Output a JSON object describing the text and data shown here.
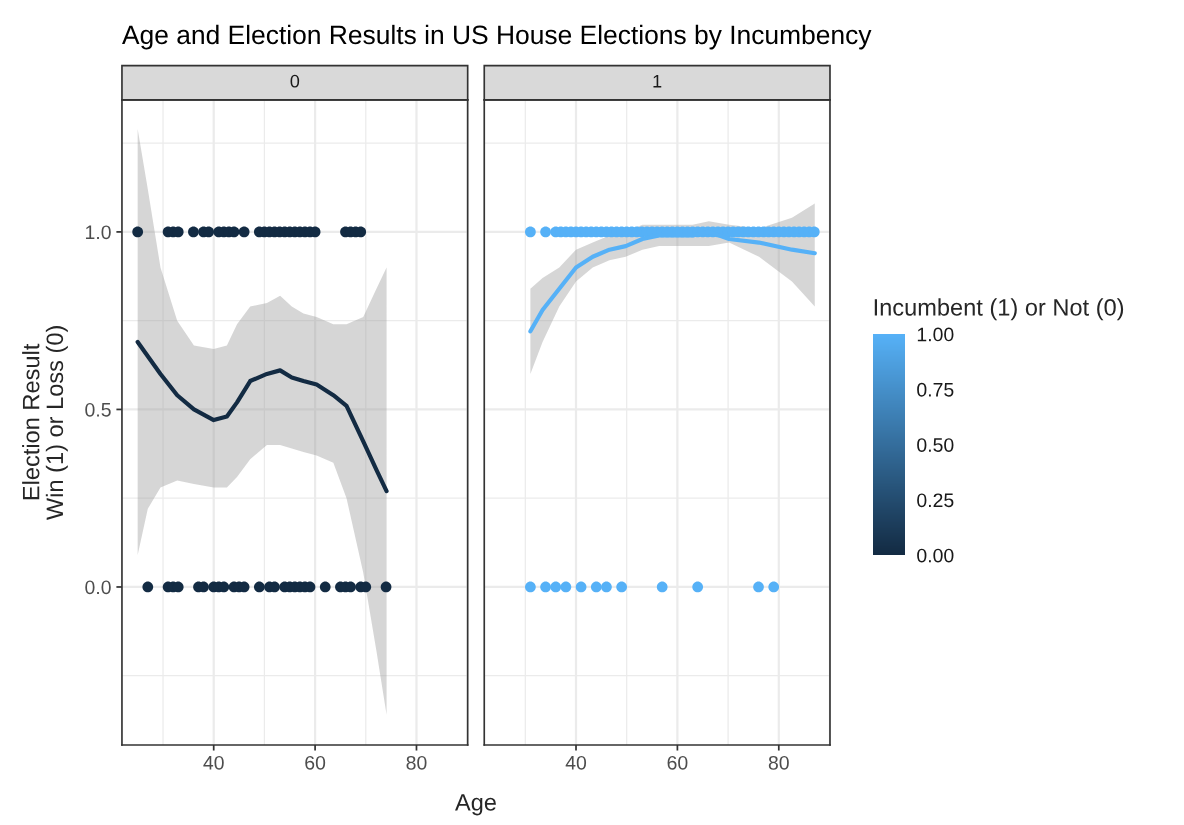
{
  "chart_data": [
    {
      "type": "scatter",
      "title": "Age and Election Results in US House Elections by Incumbency",
      "subtitle": "0",
      "xlabel": "Age",
      "ylabel": "Election Result\nWin (1) or Loss (0)",
      "clabel": "Incumbent (1) or Not (0)",
      "clim": [
        0,
        1
      ],
      "cticks": [
        {
          "value": 0,
          "label": "0.00"
        },
        {
          "value": 0.25,
          "label": "0.25"
        },
        {
          "value": 0.5,
          "label": "0.50"
        },
        {
          "value": 0.75,
          "label": "0.75"
        },
        {
          "value": 1,
          "label": "1.00"
        }
      ],
      "colors": [
        "#132b43",
        "#56b1f7"
      ],
      "xlim": [
        21.9,
        90.1
      ],
      "xticks": [
        40,
        60,
        80
      ],
      "ylim": [
        -0.445,
        1.372
      ],
      "yticks": [
        {
          "value": 0,
          "label": "0.0"
        },
        {
          "value": 0.5,
          "label": "0.5"
        },
        {
          "value": 1,
          "label": "1.0"
        }
      ],
      "grid": true,
      "series": [
        {
          "marker": "circle",
          "color": "#132b43",
          "x": [
            25,
            31,
            32,
            33,
            36,
            38,
            39,
            41,
            42,
            43,
            44,
            46,
            49,
            50,
            51,
            52,
            53,
            54,
            55,
            56,
            57,
            58,
            59,
            60,
            66,
            67,
            68,
            69,
            27,
            31,
            32,
            33,
            37,
            38,
            40,
            41,
            42,
            44,
            45,
            46,
            49,
            51,
            52,
            54,
            55,
            56,
            57,
            58,
            59,
            62,
            65,
            66,
            67,
            69,
            70,
            74
          ],
          "values": [
            1,
            1,
            1,
            1,
            1,
            1,
            1,
            1,
            1,
            1,
            1,
            1,
            1,
            1,
            1,
            1,
            1,
            1,
            1,
            1,
            1,
            1,
            1,
            1,
            1,
            1,
            1,
            1,
            0,
            0,
            0,
            0,
            0,
            0,
            0,
            0,
            0,
            0,
            0,
            0,
            0,
            0,
            0,
            0,
            0,
            0,
            0,
            0,
            0,
            0,
            0,
            0,
            0,
            0,
            0,
            0
          ]
        },
        {
          "type": "line",
          "color": "#132b43",
          "x": [
            25,
            27,
            29.5,
            32.8,
            36.1,
            40,
            42.6,
            44.6,
            47.2,
            50.5,
            53.1,
            55.4,
            57.7,
            60.3,
            63.6,
            66.2,
            69.5,
            72.1,
            74.1
          ],
          "values": [
            0.69,
            0.65,
            0.6,
            0.54,
            0.5,
            0.47,
            0.48,
            0.52,
            0.58,
            0.6,
            0.61,
            0.59,
            0.58,
            0.57,
            0.54,
            0.51,
            0.41,
            0.33,
            0.27
          ],
          "upper": [
            1.29,
            1.12,
            0.9,
            0.75,
            0.68,
            0.67,
            0.68,
            0.74,
            0.79,
            0.8,
            0.82,
            0.79,
            0.77,
            0.76,
            0.74,
            0.74,
            0.76,
            0.84,
            0.9
          ],
          "lower": [
            0.09,
            0.22,
            0.28,
            0.3,
            0.29,
            0.28,
            0.28,
            0.31,
            0.36,
            0.4,
            0.4,
            0.39,
            0.38,
            0.37,
            0.35,
            0.25,
            0.04,
            -0.18,
            -0.36
          ]
        }
      ]
    },
    {
      "type": "scatter",
      "subtitle": "1",
      "xlim": [
        21.9,
        90.1
      ],
      "xticks": [
        40,
        60,
        80
      ],
      "ylim": [
        -0.445,
        1.372
      ],
      "yticks": [
        {
          "value": 0,
          "label": null
        },
        {
          "value": 0.5,
          "label": null
        },
        {
          "value": 1,
          "label": null
        }
      ],
      "tick_labels": "x",
      "grid": true,
      "series": [
        {
          "marker": "circle",
          "color": "#56b1f7",
          "x": [
            31,
            34,
            36,
            37,
            38,
            39,
            40,
            41,
            42,
            43,
            44,
            45,
            46,
            47,
            48,
            49,
            50,
            51,
            52,
            53,
            54,
            55,
            56,
            57,
            58,
            59,
            60,
            61,
            62,
            63,
            64,
            65,
            66,
            67,
            68,
            69,
            70,
            71,
            72,
            73,
            74,
            75,
            76,
            77,
            78,
            79,
            80,
            81,
            82,
            83,
            84,
            85,
            86,
            87,
            31,
            34,
            36,
            38,
            41,
            44,
            46,
            49,
            57,
            64,
            76,
            79
          ],
          "values": [
            1,
            1,
            1,
            1,
            1,
            1,
            1,
            1,
            1,
            1,
            1,
            1,
            1,
            1,
            1,
            1,
            1,
            1,
            1,
            1,
            1,
            1,
            1,
            1,
            1,
            1,
            1,
            1,
            1,
            1,
            1,
            1,
            1,
            1,
            1,
            1,
            1,
            1,
            1,
            1,
            1,
            1,
            1,
            1,
            1,
            1,
            1,
            1,
            1,
            1,
            1,
            1,
            1,
            1,
            0,
            0,
            0,
            0,
            0,
            0,
            0,
            0,
            0,
            0,
            0,
            0
          ]
        },
        {
          "type": "line",
          "color": "#56b1f7",
          "x": [
            31,
            33.4,
            36.7,
            40,
            43.3,
            46.6,
            49.8,
            53.1,
            56.4,
            59.7,
            63,
            66.2,
            70.2,
            76.1,
            82.6,
            87.1
          ],
          "values": [
            0.72,
            0.78,
            0.84,
            0.9,
            0.93,
            0.95,
            0.96,
            0.98,
            0.99,
            0.99,
            0.99,
            1.0,
            0.98,
            0.97,
            0.95,
            0.94
          ],
          "upper": [
            0.84,
            0.87,
            0.9,
            0.95,
            0.97,
            0.99,
            1.0,
            1.02,
            1.02,
            1.02,
            1.02,
            1.03,
            1.02,
            1.01,
            1.04,
            1.08
          ],
          "lower": [
            0.6,
            0.69,
            0.79,
            0.86,
            0.9,
            0.92,
            0.93,
            0.95,
            0.96,
            0.96,
            0.96,
            0.96,
            0.97,
            0.93,
            0.86,
            0.79
          ]
        }
      ]
    }
  ]
}
